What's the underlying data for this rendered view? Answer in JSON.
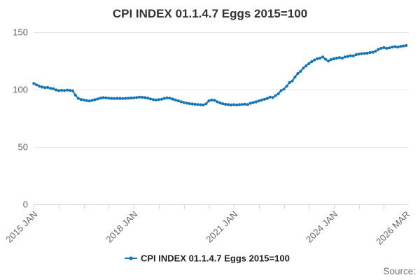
{
  "header": {
    "title": "CPI INDEX 01.1.4.7 Eggs 2015=100"
  },
  "legend": {
    "label": "CPI INDEX 01.1.4.7 Eggs 2015=100"
  },
  "source": {
    "label": "Source:"
  },
  "chart_data": {
    "type": "line",
    "title": "CPI INDEX 01.1.4.7 Eggs 2015=100",
    "xlabel": "",
    "ylabel": "",
    "x_start": "2015 JAN",
    "x_end": "2026 MAR",
    "frequency": "monthly",
    "ylim": [
      0,
      150
    ],
    "y_ticks": [
      0,
      50,
      100,
      150
    ],
    "x_minor_tick_every": 9,
    "x_labeled_ticks": [
      {
        "index": 0,
        "label": "2015 JAN"
      },
      {
        "index": 36,
        "label": "2018 JAN"
      },
      {
        "index": 72,
        "label": "2021 JAN"
      },
      {
        "index": 108,
        "label": "2024 JAN"
      },
      {
        "index": 134,
        "label": "2026 MAR"
      }
    ],
    "grid": true,
    "legend_position": "bottom",
    "colors": {
      "line": "#1375b7",
      "grid": "#e6e6e6",
      "axis": "#ccd6eb",
      "tick_label": "#666666",
      "title": "#333333",
      "legend_text": "#222222",
      "source": "#6f6f6f"
    },
    "series": [
      {
        "name": "CPI INDEX 01.1.4.7 Eggs 2015=100",
        "color": "#1375b7",
        "values": [
          105.3,
          104.1,
          103.0,
          102.2,
          101.7,
          101.9,
          101.1,
          100.8,
          99.7,
          99.1,
          99.4,
          99.2,
          99.6,
          99.3,
          98.9,
          95.2,
          92.3,
          91.4,
          91.0,
          90.4,
          90.1,
          90.6,
          91.2,
          91.8,
          92.6,
          93.0,
          92.8,
          92.5,
          92.3,
          92.2,
          92.4,
          92.3,
          92.2,
          92.4,
          92.5,
          92.7,
          92.8,
          93.1,
          93.4,
          93.3,
          93.0,
          92.6,
          91.9,
          91.2,
          91.0,
          91.3,
          91.6,
          92.4,
          92.8,
          92.5,
          91.7,
          91.0,
          90.2,
          89.4,
          88.7,
          88.2,
          87.8,
          87.5,
          87.2,
          87.0,
          86.8,
          86.6,
          87.6,
          90.2,
          91.0,
          90.7,
          89.4,
          88.4,
          87.7,
          87.2,
          86.9,
          86.6,
          86.9,
          86.6,
          86.9,
          87.1,
          87.3,
          87.0,
          88.1,
          88.7,
          89.4,
          90.1,
          90.9,
          91.6,
          92.3,
          93.5,
          93.1,
          94.7,
          96.3,
          99.2,
          100.4,
          102.9,
          106.1,
          107.5,
          111.0,
          114.0,
          116.0,
          118.7,
          120.7,
          122.6,
          124.3,
          125.8,
          126.8,
          127.4,
          128.5,
          126.4,
          124.9,
          126.2,
          126.8,
          127.4,
          127.9,
          127.4,
          128.5,
          128.9,
          129.5,
          129.3,
          130.5,
          130.9,
          131.3,
          131.5,
          131.7,
          132.3,
          132.5,
          133.4,
          135.0,
          136.0,
          136.6,
          136.0,
          136.4,
          137.0,
          137.4,
          137.0,
          137.6,
          138.0,
          138.4
        ]
      }
    ]
  }
}
